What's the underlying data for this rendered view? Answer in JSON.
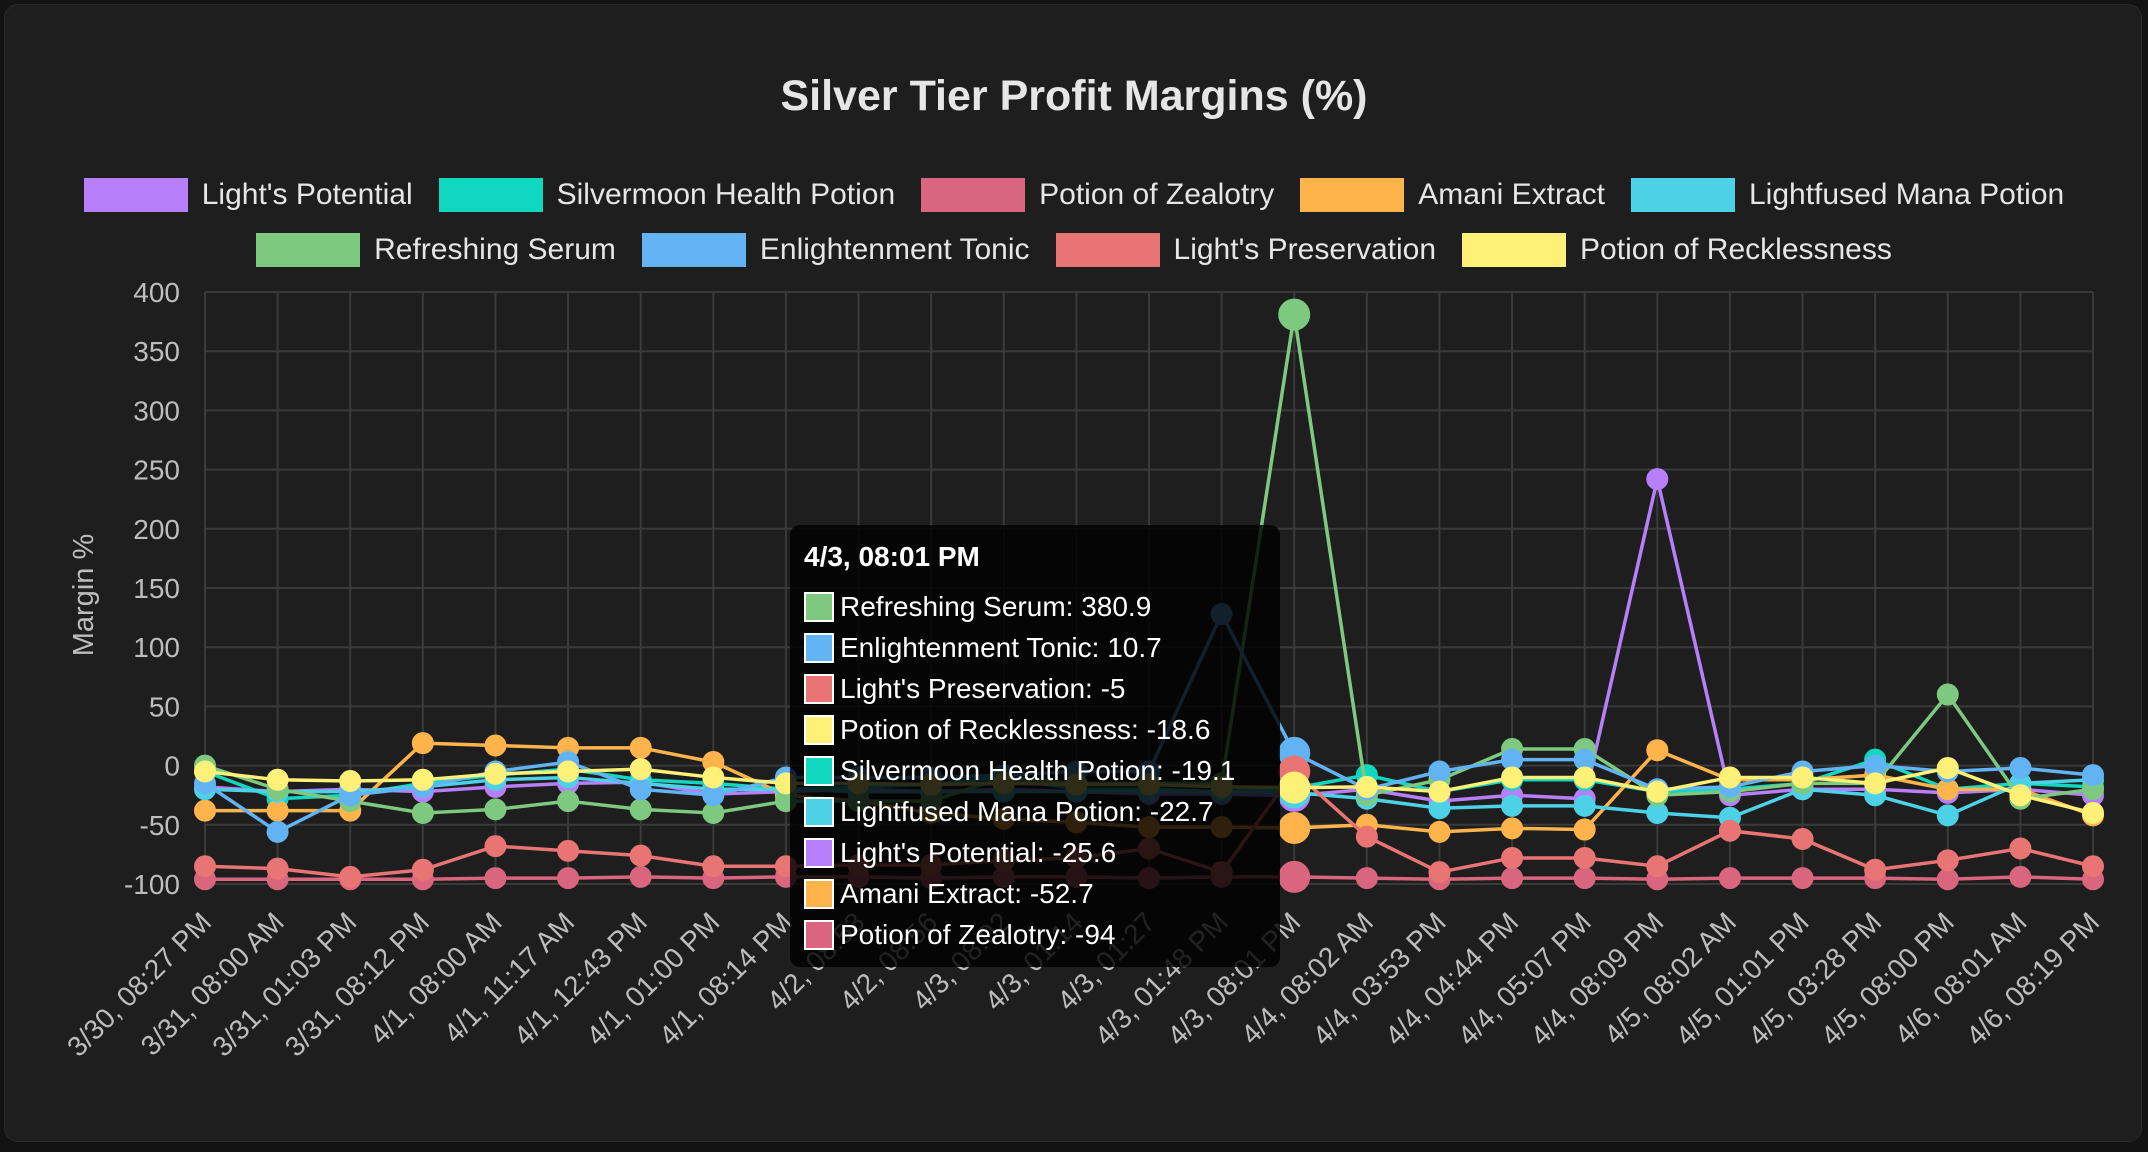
{
  "chart_data": {
    "type": "line",
    "title": "Silver Tier Profit Margins (%)",
    "ylabel": "Margin %",
    "ylim": [
      -100,
      400
    ],
    "yticks": [
      400,
      350,
      300,
      250,
      200,
      150,
      100,
      50,
      0,
      -50,
      -100
    ],
    "grid": true,
    "legend": "top",
    "x": [
      "3/30, 08:27 PM",
      "3/31, 08:00 AM",
      "3/31, 01:03 PM",
      "3/31, 08:12 PM",
      "4/1, 08:00 AM",
      "4/1, 11:17 AM",
      "4/1, 12:43 PM",
      "4/1, 01:00 PM",
      "4/1, 08:14 PM",
      "4/2, 08:53",
      "4/2, 08:56",
      "4/3, 08:02",
      "4/3, 01:14",
      "4/3, 01:27",
      "4/3, 01:48 PM",
      "4/3, 08:01 PM",
      "4/4, 08:02 AM",
      "4/4, 03:53 PM",
      "4/4, 04:44 PM",
      "4/4, 05:07 PM",
      "4/4, 08:09 PM",
      "4/5, 08:02 AM",
      "4/5, 01:01 PM",
      "4/5, 03:28 PM",
      "4/5, 08:00 PM",
      "4/6, 08:01 AM",
      "4/6, 08:19 PM"
    ],
    "series": [
      {
        "name": "Light's Potential",
        "color": "#b77ffa",
        "values": [
          -18,
          -22,
          -20,
          -22,
          -18,
          -15,
          -14,
          -24,
          -22,
          -20,
          -22,
          -20,
          -22,
          -24,
          -24,
          -25.6,
          -20,
          -30,
          -25,
          -28,
          242,
          -25,
          -20,
          -20,
          -23,
          -20,
          -25
        ]
      },
      {
        "name": "Silvermoon Health Potion",
        "color": "#10d8c0",
        "values": [
          -5,
          -28,
          -25,
          -15,
          -8,
          -3,
          -12,
          -15,
          -20,
          -18,
          -16,
          -10,
          -20,
          -20,
          -22,
          -19.1,
          -8,
          -22,
          -12,
          -12,
          -22,
          -20,
          -15,
          5,
          -20,
          -15,
          -18
        ]
      },
      {
        "name": "Potion of Zealotry",
        "color": "#d9667e",
        "values": [
          -96,
          -96,
          -96,
          -96,
          -95,
          -95,
          -94,
          -95,
          -94,
          -94,
          -95,
          -94,
          -94,
          -95,
          -94,
          -94,
          -95,
          -96,
          -95,
          -95,
          -96,
          -95,
          -95,
          -95,
          -96,
          -94,
          -96
        ]
      },
      {
        "name": "Amani Extract",
        "color": "#ffb34b",
        "values": [
          -38,
          -38,
          -38,
          19,
          17,
          15,
          15,
          3,
          -25,
          -30,
          -40,
          -45,
          -48,
          -52,
          -52,
          -52.7,
          -50,
          -56,
          -53,
          -54,
          13,
          -12,
          -12,
          -8,
          -20,
          -20,
          -42
        ]
      },
      {
        "name": "Lightfused Mana Potion",
        "color": "#4dd1e6",
        "values": [
          -20,
          -22,
          -22,
          -18,
          -12,
          -10,
          -15,
          -20,
          -20,
          -22,
          -22,
          -22,
          -22,
          -22,
          -22,
          -22.7,
          -28,
          -36,
          -34,
          -34,
          -40,
          -44,
          -20,
          -25,
          -42,
          -15,
          -12
        ]
      },
      {
        "name": "Refreshing Serum",
        "color": "#7dc97f",
        "values": [
          0,
          -20,
          -30,
          -40,
          -37,
          -30,
          -37,
          -40,
          -30,
          -30,
          -30,
          -10,
          -15,
          -15,
          -15,
          380.9,
          -25,
          -12,
          14,
          14,
          -25,
          -22,
          -15,
          -15,
          60,
          -28,
          -20
        ]
      },
      {
        "name": "Enlightenment Tonic",
        "color": "#62b3f3",
        "values": [
          -15,
          -56,
          -25,
          -18,
          -5,
          3,
          -20,
          -25,
          -10,
          -10,
          -10,
          -8,
          -5,
          -5,
          128,
          10.7,
          -20,
          -5,
          5,
          5,
          -20,
          -18,
          -5,
          0,
          -5,
          -2,
          -8
        ]
      },
      {
        "name": "Light's Preservation",
        "color": "#e87474",
        "values": [
          -85,
          -87,
          -94,
          -88,
          -68,
          -72,
          -76,
          -85,
          -85,
          -84,
          -84,
          -80,
          -78,
          -70,
          -90,
          -5,
          -60,
          -90,
          -78,
          -78,
          -85,
          -55,
          -62,
          -88,
          -80,
          -70,
          -85
        ]
      },
      {
        "name": "Potion of Recklessness",
        "color": "#fff178",
        "values": [
          -5,
          -12,
          -13,
          -12,
          -7,
          -5,
          -3,
          -10,
          -15,
          -15,
          -16,
          -15,
          -16,
          -16,
          -18,
          -18.6,
          -18,
          -22,
          -10,
          -10,
          -22,
          -10,
          -10,
          -15,
          -2,
          -25,
          -40
        ]
      }
    ],
    "highlight": {
      "index": 15,
      "title": "4/3, 08:01 PM",
      "entries": [
        {
          "name": "Refreshing Serum",
          "value": "380.9",
          "color": "#7dc97f"
        },
        {
          "name": "Enlightenment Tonic",
          "value": "10.7",
          "color": "#62b3f3"
        },
        {
          "name": "Light's Preservation",
          "value": "-5",
          "color": "#e87474"
        },
        {
          "name": "Potion of Recklessness",
          "value": "-18.6",
          "color": "#fff178"
        },
        {
          "name": "Silvermoon Health Potion",
          "value": "-19.1",
          "color": "#10d8c0"
        },
        {
          "name": "Lightfused Mana Potion",
          "value": "-22.7",
          "color": "#4dd1e6"
        },
        {
          "name": "Light's Potential",
          "value": "-25.6",
          "color": "#b77ffa"
        },
        {
          "name": "Amani Extract",
          "value": "-52.7",
          "color": "#ffb34b"
        },
        {
          "name": "Potion of Zealotry",
          "value": "-94",
          "color": "#d9667e"
        }
      ]
    }
  },
  "legend_rows": [
    [
      "Light's Potential",
      "Silvermoon Health Potion",
      "Potion of Zealotry",
      "Amani Extract",
      "Lightfused Mana Potion"
    ],
    [
      "Refreshing Serum",
      "Enlightenment Tonic",
      "Light's Preservation",
      "Potion of Recklessness"
    ]
  ],
  "tooltip": {
    "title": "4/3, 08:01 PM",
    "rows": [
      {
        "label": "Refreshing Serum: 380.9",
        "color": "#7dc97f"
      },
      {
        "label": "Enlightenment Tonic: 10.7",
        "color": "#62b3f3"
      },
      {
        "label": "Light's Preservation: -5",
        "color": "#e87474"
      },
      {
        "label": "Potion of Recklessness: -18.6",
        "color": "#fff178"
      },
      {
        "label": "Silvermoon Health Potion: -19.1",
        "color": "#10d8c0"
      },
      {
        "label": "Lightfused Mana Potion: -22.7",
        "color": "#4dd1e6"
      },
      {
        "label": "Light's Potential: -25.6",
        "color": "#b77ffa"
      },
      {
        "label": "Amani Extract: -52.7",
        "color": "#ffb34b"
      },
      {
        "label": "Potion of Zealotry: -94",
        "color": "#d9667e"
      }
    ]
  }
}
